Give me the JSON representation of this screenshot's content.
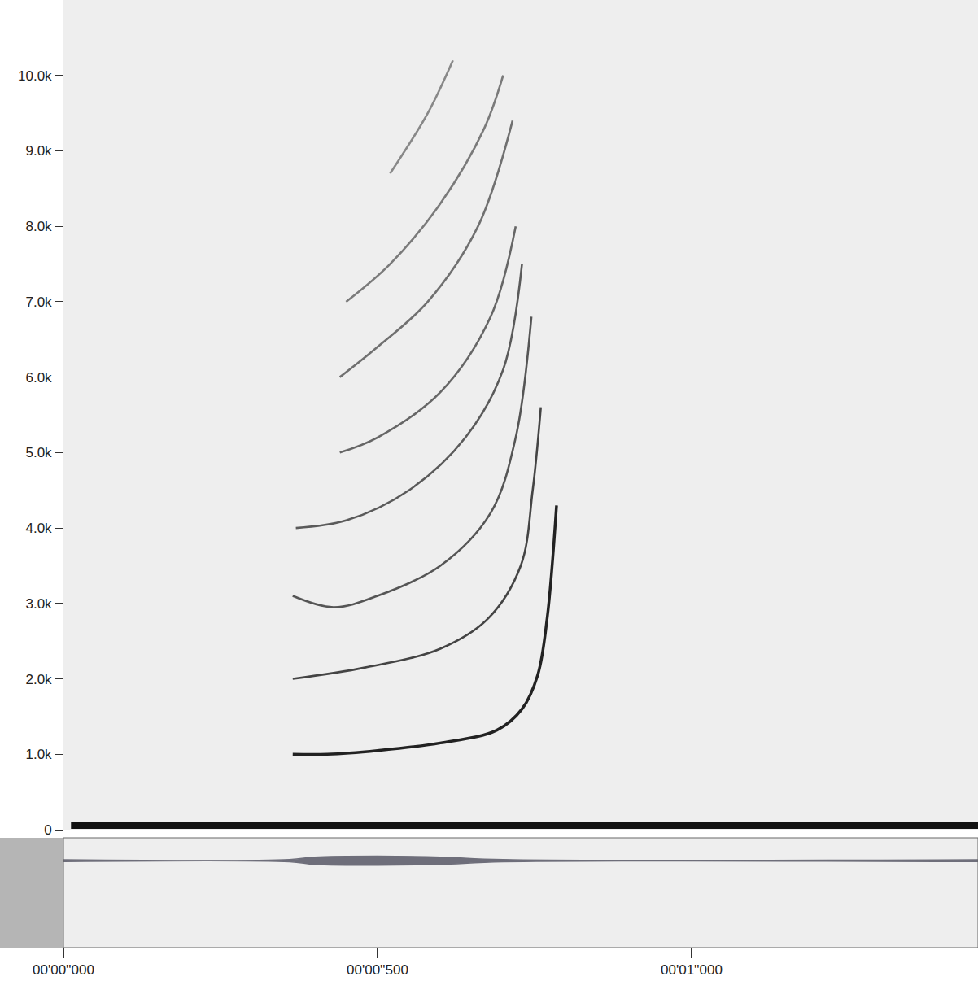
{
  "chart_data": {
    "type": "line",
    "xlim": [
      0,
      1.456
    ],
    "xticks": [
      {
        "value": 0,
        "label": "00'00''000"
      },
      {
        "value": 0.5,
        "label": "00'00''500"
      },
      {
        "value": 1.0,
        "label": "00'01''000"
      }
    ],
    "ylim": [
      0,
      11000
    ],
    "yticks": [
      0,
      {
        "value": 1000,
        "label": "1.0k"
      },
      {
        "value": 2000,
        "label": "2.0k"
      },
      {
        "value": 3000,
        "label": "3.0k"
      },
      {
        "value": 4000,
        "label": "4.0k"
      },
      {
        "value": 5000,
        "label": "5.0k"
      },
      {
        "value": 6000,
        "label": "6.0k"
      },
      {
        "value": 7000,
        "label": "7.0k"
      },
      {
        "value": 8000,
        "label": "8.0k"
      },
      {
        "value": 9000,
        "label": "9.0k"
      },
      {
        "value": 10000,
        "label": "10.0k"
      }
    ],
    "grid": false,
    "series": [
      {
        "color": "#111111",
        "line_style": "thick",
        "x": [
          0.012,
          1.456
        ],
        "values": [
          60,
          60
        ]
      },
      {
        "color": "#222222",
        "line_style": "solid",
        "x": [
          0.365,
          0.42,
          0.5,
          0.6,
          0.69,
          0.73,
          0.755,
          0.77,
          0.785
        ],
        "values": [
          1000,
          1000,
          1050,
          1150,
          1320,
          1600,
          2050,
          2800,
          4300
        ]
      },
      {
        "color": "#444444",
        "line_style": "solid",
        "x": [
          0.365,
          0.48,
          0.6,
          0.676,
          0.728,
          0.747,
          0.76
        ],
        "values": [
          2000,
          2150,
          2400,
          2800,
          3500,
          4500,
          5600
        ]
      },
      {
        "color": "#555555",
        "line_style": "solid",
        "x": [
          0.365,
          0.43,
          0.5,
          0.6,
          0.68,
          0.72,
          0.745
        ],
        "values": [
          3100,
          2950,
          3100,
          3500,
          4200,
          5200,
          6800
        ]
      },
      {
        "color": "#5a5a5a",
        "line_style": "solid",
        "x": [
          0.37,
          0.45,
          0.55,
          0.64,
          0.7,
          0.73
        ],
        "values": [
          4000,
          4100,
          4500,
          5200,
          6100,
          7500
        ]
      },
      {
        "color": "#666666",
        "line_style": "solid",
        "x": [
          0.44,
          0.5,
          0.6,
          0.68,
          0.72
        ],
        "values": [
          5000,
          5200,
          5800,
          6800,
          8000
        ]
      },
      {
        "color": "#707070",
        "line_style": "solid",
        "x": [
          0.44,
          0.5,
          0.58,
          0.66,
          0.715
        ],
        "values": [
          6000,
          6400,
          7000,
          8000,
          9400
        ]
      },
      {
        "color": "#7a7a7a",
        "line_style": "solid",
        "x": [
          0.45,
          0.52,
          0.6,
          0.67,
          0.7
        ],
        "values": [
          7000,
          7500,
          8300,
          9300,
          10000
        ]
      },
      {
        "color": "#888888",
        "line_style": "solid",
        "x": [
          0.52,
          0.58,
          0.62
        ],
        "values": [
          8700,
          9500,
          10200
        ]
      }
    ],
    "waveform": {
      "color": "#6e6e7a",
      "ylim": [
        -38,
        10
      ],
      "x": [
        0,
        0.36,
        0.4,
        0.5,
        0.6,
        0.7,
        1.456
      ],
      "amplitude": [
        0.4,
        0.5,
        1.6,
        2.0,
        1.6,
        0.5,
        0.4
      ]
    }
  }
}
